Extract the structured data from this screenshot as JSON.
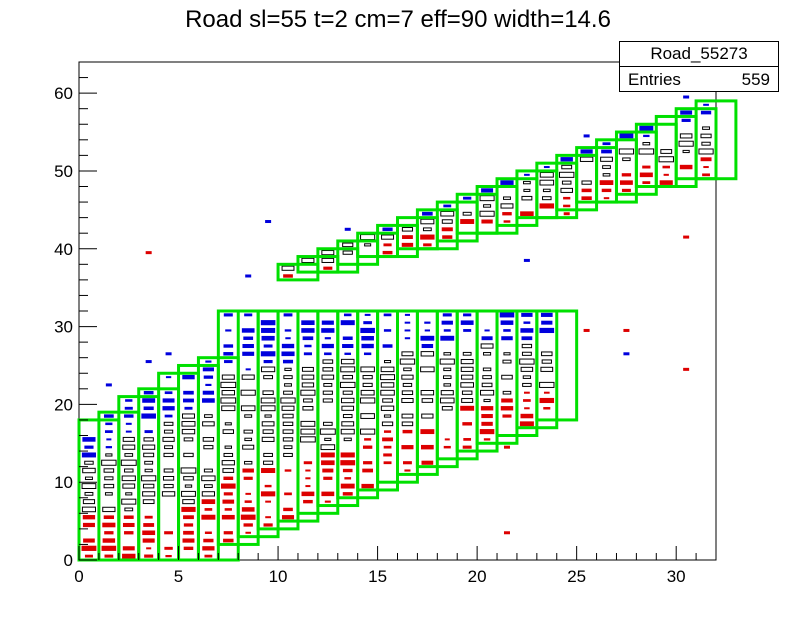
{
  "chart_data": {
    "type": "heatmap",
    "title": "Road sl=55 t=2 cm=7 eff=90 width=14.6",
    "xlim": [
      0,
      32
    ],
    "ylim": [
      0,
      64
    ],
    "x_ticks": [
      "0",
      "5",
      "10",
      "15",
      "20",
      "25",
      "30"
    ],
    "y_ticks": [
      "0",
      "10",
      "20",
      "30",
      "40",
      "50",
      "60"
    ],
    "stats_box": {
      "name": "Road_55273",
      "entries_label": "Entries",
      "entries": "559"
    },
    "colors": {
      "road_box": "#00e000",
      "in_road": "#000000",
      "above_road": "#0000dd",
      "below_road": "#dd0000"
    },
    "road_bands": [
      {
        "x_start": 0,
        "x_end": 7,
        "y_bottom_start": 0,
        "y_bottom_slope": 0,
        "y_top_start": 18,
        "y_top_slope": 1.4
      },
      {
        "x_start": 7,
        "x_end": 24,
        "y_bottom_start": 1.5,
        "y_bottom_slope": 1.05,
        "y_top_start": 32,
        "y_top_slope": 0
      },
      {
        "x_start": 10,
        "x_end": 32,
        "y_bottom_start": 36.5,
        "y_bottom_slope": 0.62,
        "y_top_start": 36,
        "y_top_slope": 1.0
      }
    ],
    "outliers": [
      {
        "x": 3.5,
        "y": 39.5,
        "c": "below"
      },
      {
        "x": 9.5,
        "y": 43.5,
        "c": "above"
      },
      {
        "x": 4.5,
        "y": 26.5,
        "c": "above"
      },
      {
        "x": 3.5,
        "y": 25.5,
        "c": "above"
      },
      {
        "x": 1.5,
        "y": 22.5,
        "c": "above"
      },
      {
        "x": 21.5,
        "y": 3.5,
        "c": "below"
      },
      {
        "x": 17.5,
        "y": 12.5,
        "c": "below"
      },
      {
        "x": 21.5,
        "y": 14.5,
        "c": "below"
      },
      {
        "x": 25.5,
        "y": 29.5,
        "c": "below"
      },
      {
        "x": 27.5,
        "y": 29.5,
        "c": "below"
      },
      {
        "x": 27.5,
        "y": 26.5,
        "c": "above"
      },
      {
        "x": 30.5,
        "y": 24.5,
        "c": "below"
      },
      {
        "x": 30.5,
        "y": 41.5,
        "c": "below"
      },
      {
        "x": 22.5,
        "y": 38.5,
        "c": "above"
      },
      {
        "x": 24.5,
        "y": 44.5,
        "c": "below"
      },
      {
        "x": 25.5,
        "y": 54.5,
        "c": "above"
      },
      {
        "x": 30.5,
        "y": 59.5,
        "c": "above"
      },
      {
        "x": 31.5,
        "y": 60.5,
        "c": "above"
      },
      {
        "x": 13.5,
        "y": 42.5,
        "c": "above"
      },
      {
        "x": 8.5,
        "y": 36.5,
        "c": "above"
      }
    ]
  }
}
